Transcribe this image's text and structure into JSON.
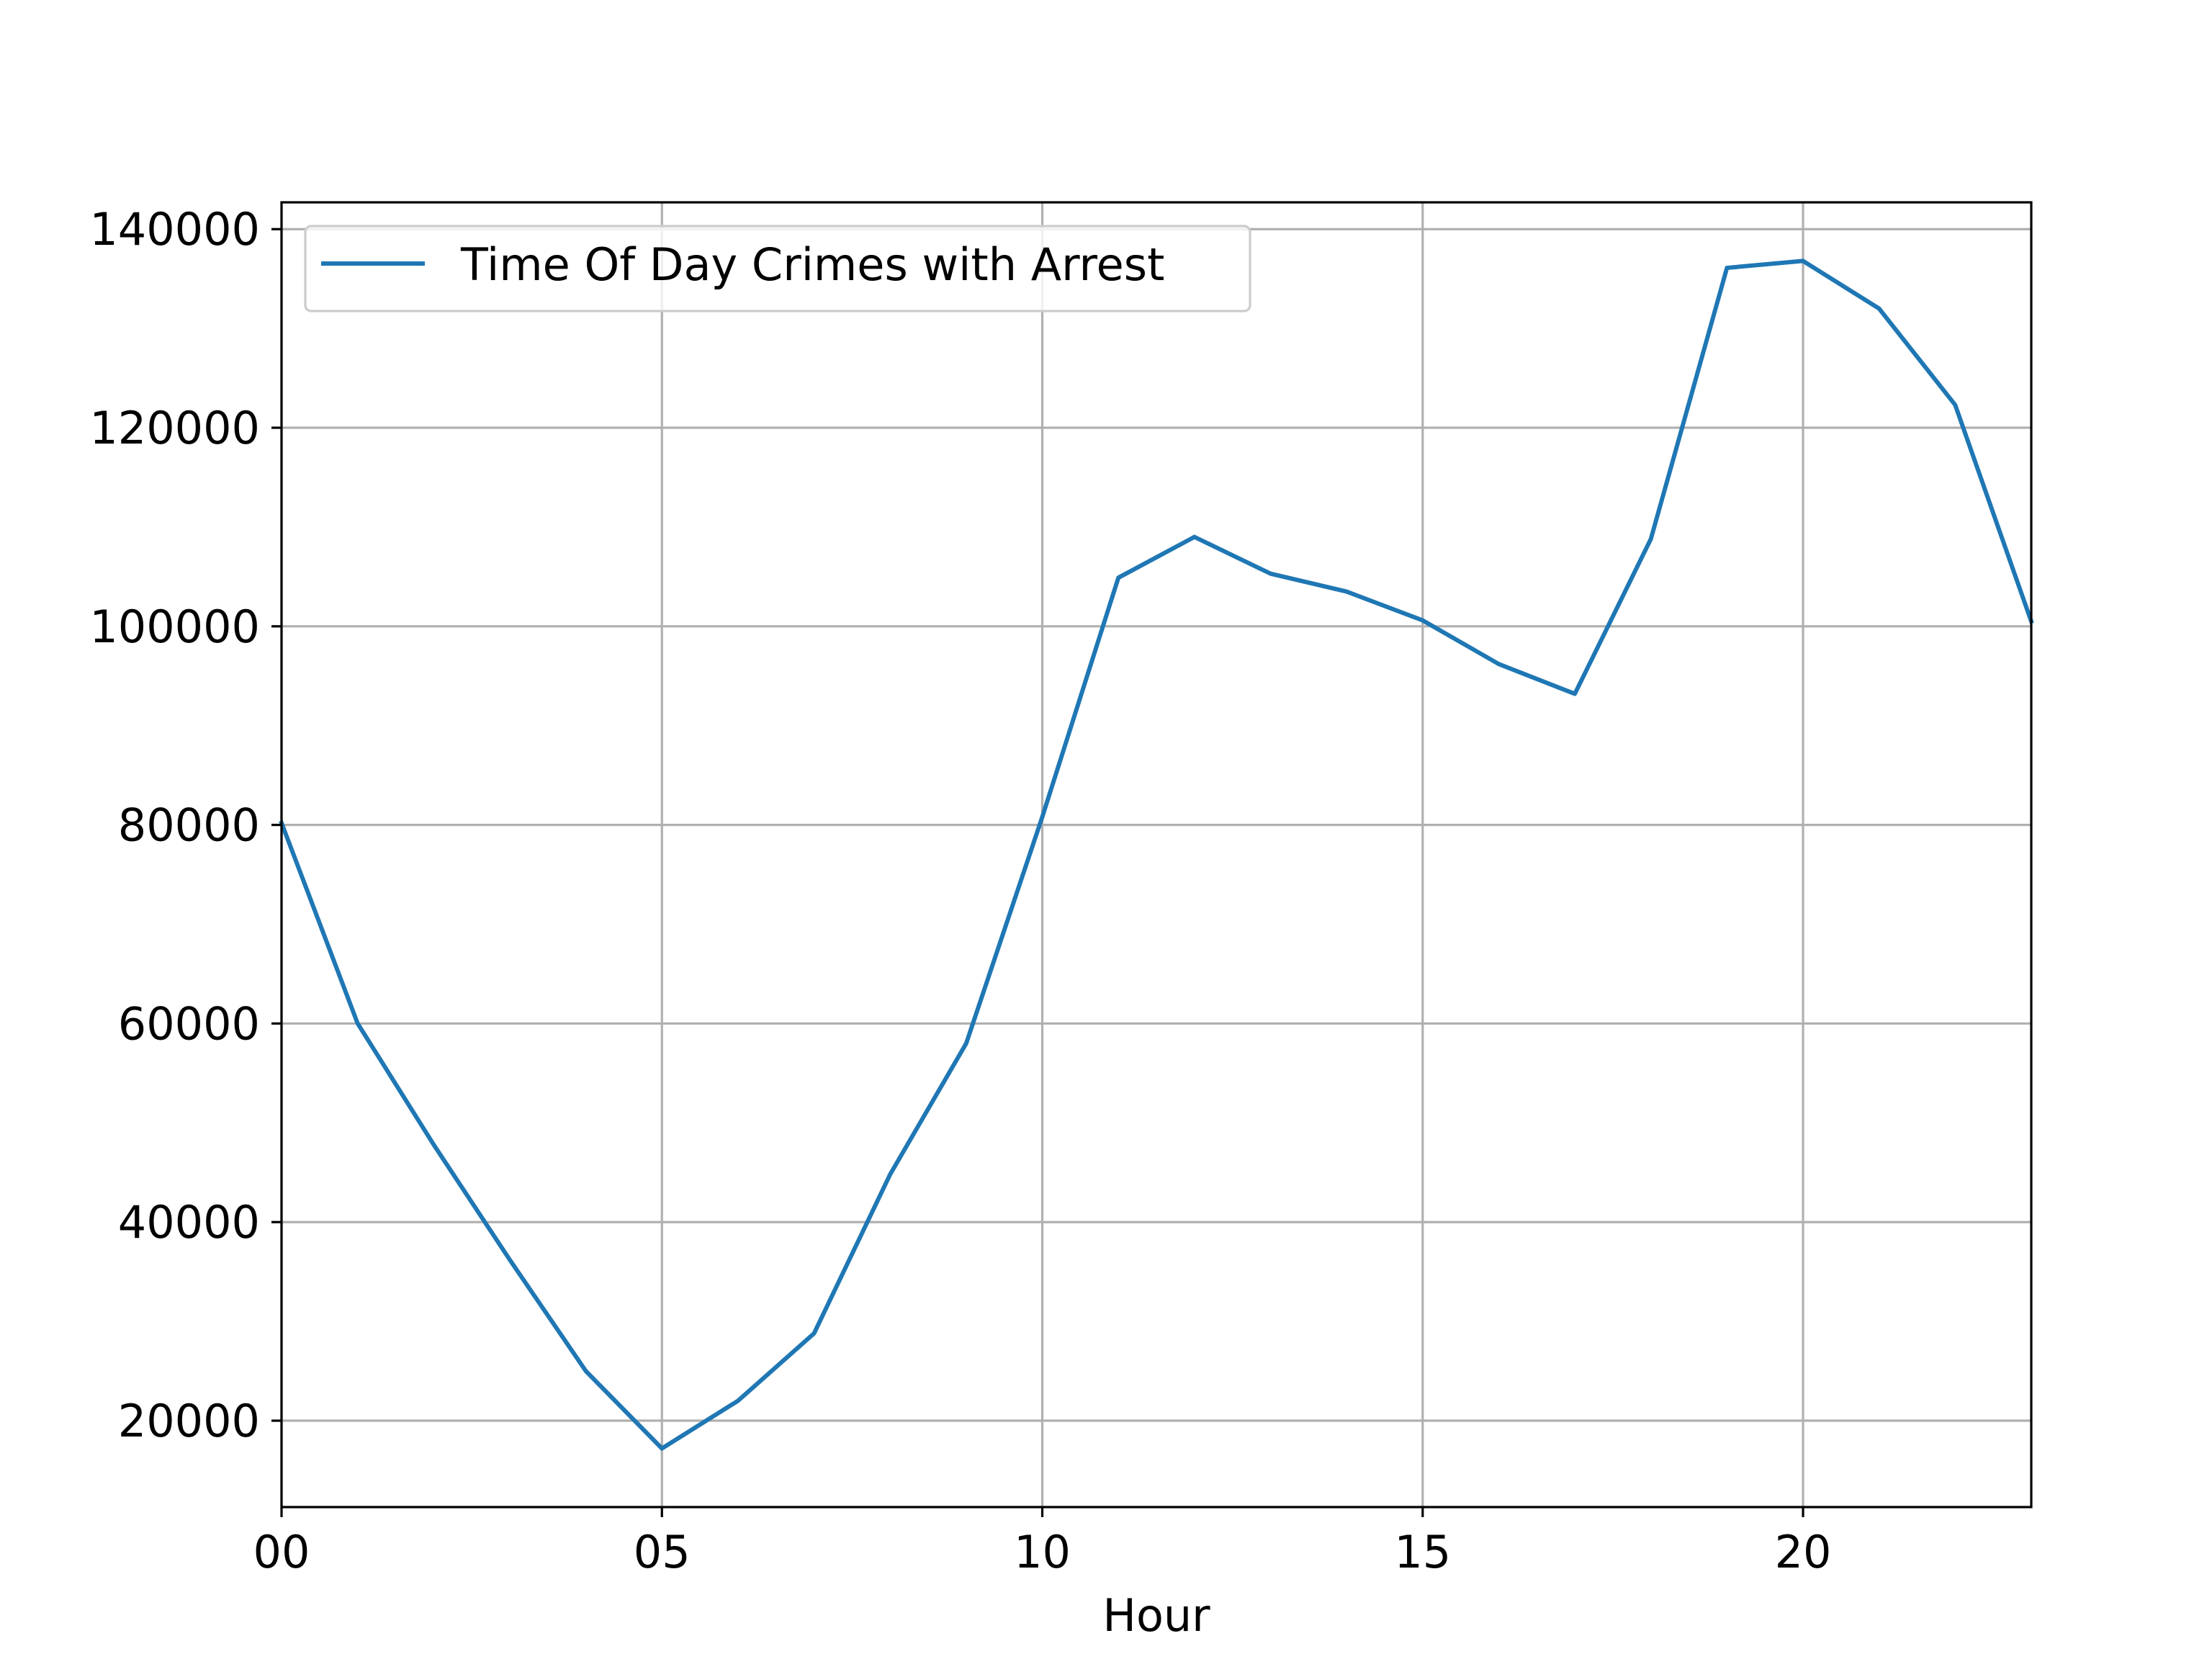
{
  "chart_data": {
    "type": "line",
    "xlabel": "Hour",
    "ylabel": "",
    "x_ticks": [
      "00",
      "05",
      "10",
      "15",
      "20"
    ],
    "x_tick_values": [
      0,
      5,
      10,
      15,
      20
    ],
    "y_ticks": [
      "20000",
      "40000",
      "60000",
      "80000",
      "100000",
      "120000",
      "140000"
    ],
    "y_tick_values": [
      20000,
      40000,
      60000,
      80000,
      100000,
      120000,
      140000
    ],
    "xlim": [
      0,
      23
    ],
    "ylim": [
      11300,
      142700
    ],
    "grid": true,
    "legend_position": "upper-left",
    "x": [
      0,
      1,
      2,
      3,
      4,
      5,
      6,
      7,
      8,
      9,
      10,
      11,
      12,
      13,
      14,
      15,
      16,
      17,
      18,
      19,
      20,
      21,
      22,
      23
    ],
    "series": [
      {
        "name": "Time Of Day Crimes with Arrest",
        "color": "#1f77b4",
        "values": [
          80200,
          60000,
          47800,
          36200,
          25000,
          17200,
          22000,
          28800,
          44800,
          58000,
          80800,
          104900,
          109000,
          105300,
          103500,
          100600,
          96200,
          93200,
          108800,
          136100,
          136800,
          132000,
          122300,
          100500
        ]
      }
    ]
  }
}
